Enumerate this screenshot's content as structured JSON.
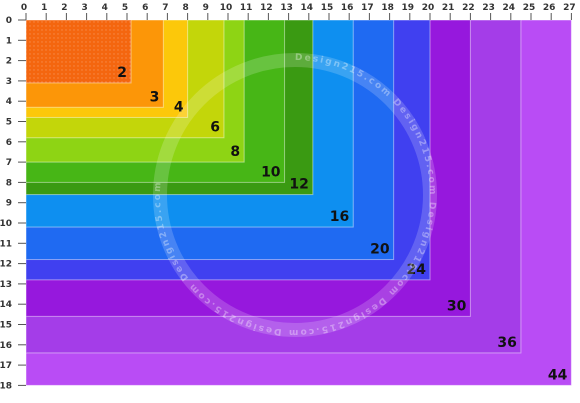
{
  "ruler": {
    "x_ticks": [
      "0",
      "1",
      "2",
      "3",
      "4",
      "5",
      "6",
      "7",
      "8",
      "9",
      "10",
      "11",
      "12",
      "13",
      "14",
      "15",
      "16",
      "17",
      "18",
      "19",
      "20",
      "21",
      "22",
      "23",
      "24",
      "25",
      "26",
      "27"
    ],
    "y_ticks": [
      "0",
      "1",
      "2",
      "3",
      "4",
      "5",
      "6",
      "7",
      "8",
      "9",
      "10",
      "11",
      "12",
      "13",
      "14",
      "15",
      "16",
      "17",
      "18"
    ],
    "x_max": 27,
    "y_max": 18
  },
  "watermark": {
    "text": "Design215.com",
    "ring_text": "Design215.com  Design215.com  Design215.com  Design215.com  Design215.com  Design215.com"
  },
  "sizes": [
    {
      "label": "44",
      "cols": 27,
      "rows": 18,
      "color": "#b94cf5"
    },
    {
      "label": "36",
      "cols": 24.5,
      "rows": 16.4,
      "color": "#a43de8"
    },
    {
      "label": "30",
      "cols": 22,
      "rows": 14.6,
      "color": "#9618dd"
    },
    {
      "label": "24",
      "cols": 20,
      "rows": 12.8,
      "color": "#4040f0"
    },
    {
      "label": "20",
      "cols": 18.2,
      "rows": 11.8,
      "color": "#1f6af2"
    },
    {
      "label": "16",
      "cols": 16.2,
      "rows": 10.2,
      "color": "#0e8ff0"
    },
    {
      "label": "12",
      "cols": 14.2,
      "rows": 8.6,
      "color": "#3a9a12"
    },
    {
      "label": "10",
      "cols": 12.8,
      "rows": 8.0,
      "color": "#47b616"
    },
    {
      "label": "8",
      "cols": 10.8,
      "rows": 7.0,
      "color": "#8ed414"
    },
    {
      "label": "6",
      "cols": 9.8,
      "rows": 5.8,
      "color": "#c3d60a"
    },
    {
      "label": "4",
      "cols": 8.0,
      "rows": 4.8,
      "color": "#fcc80a"
    },
    {
      "label": "3",
      "cols": 6.8,
      "rows": 4.3,
      "color": "#fc9608"
    },
    {
      "label": "2",
      "cols": 5.2,
      "rows": 3.1,
      "color": "#f4660f"
    }
  ]
}
